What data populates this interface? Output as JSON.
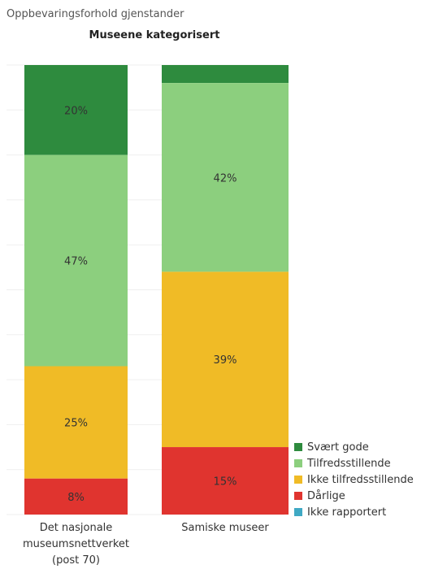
{
  "page_title": "Oppbevaringsforhold gjenstander",
  "chart_data": {
    "type": "bar",
    "stacked": true,
    "percent": true,
    "title": "Museene kategorisert",
    "categories": [
      [
        "Det nasjonale",
        "museumsnettverket",
        "(post 70)"
      ],
      [
        "Samiske museer"
      ]
    ],
    "series": [
      {
        "name": "Svært gode",
        "color": "#2e8b3e",
        "values": [
          20,
          4
        ]
      },
      {
        "name": "Tilfredsstillende",
        "color": "#8ccf7e",
        "values": [
          47,
          42
        ]
      },
      {
        "name": "Ikke tilfredsstillende",
        "color": "#f0bb26",
        "values": [
          25,
          39
        ]
      },
      {
        "name": "Dårlige",
        "color": "#e0342f",
        "values": [
          8,
          15
        ]
      },
      {
        "name": "Ikke rapportert",
        "color": "#3fa9c4",
        "values": [
          0,
          0
        ]
      }
    ],
    "data_labels": [
      [
        "20%",
        "47%",
        "25%",
        "8%",
        ""
      ],
      [
        "",
        "42%",
        "39%",
        "15%",
        ""
      ]
    ],
    "ylim": [
      0,
      100
    ],
    "grid": true,
    "legend_position": "bottom-right"
  }
}
